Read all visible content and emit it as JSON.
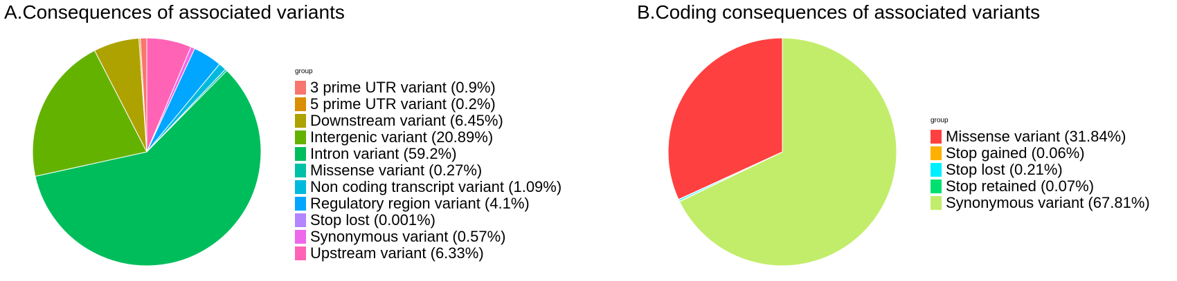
{
  "chart_data": [
    {
      "type": "pie",
      "title": "A.Consequences of associated variants",
      "legend_title": "group",
      "legend_position": "right",
      "start_angle_deg": 0,
      "direction": "clockwise",
      "categories": [
        "3 prime UTR variant (0.9%)",
        "5 prime UTR variant (0.2%)",
        "Downstream variant (6.45%)",
        "Intergenic variant (20.89%)",
        "Intron variant (59.2%)",
        "Missense variant (0.27%)",
        "Non coding transcript variant (1.09%)",
        "Regulatory region variant (4.1%)",
        "Stop lost (0.001%)",
        "Synonymous variant (0.57%)",
        "Upstream variant (6.33%)"
      ],
      "values": [
        0.9,
        0.2,
        6.45,
        20.89,
        59.2,
        0.27,
        1.09,
        4.1,
        0.001,
        0.57,
        6.33
      ],
      "colors": [
        "#F8766D",
        "#DB8E00",
        "#AEA200",
        "#64B200",
        "#00BD5C",
        "#00C1A7",
        "#00BADE",
        "#00A6FF",
        "#B385FF",
        "#EF67EB",
        "#FF63B6"
      ],
      "slice_order": [
        10,
        9,
        8,
        7,
        6,
        5,
        4,
        3,
        2,
        1,
        0
      ]
    },
    {
      "type": "pie",
      "title": "B.Coding consequences of associated variants",
      "legend_title": "group",
      "legend_position": "right",
      "start_angle_deg": 0,
      "direction": "clockwise",
      "categories": [
        "Missense variant (31.84%)",
        "Stop gained (0.06%)",
        "Stop lost (0.21%)",
        "Stop retained (0.07%)",
        "Synonymous variant (67.81%)"
      ],
      "values": [
        31.84,
        0.06,
        0.21,
        0.07,
        67.81
      ],
      "colors": [
        "#FF4040",
        "#FFB000",
        "#00F0FF",
        "#00E070",
        "#C2ED6B"
      ],
      "slice_order": [
        4,
        3,
        2,
        1,
        0
      ]
    }
  ]
}
